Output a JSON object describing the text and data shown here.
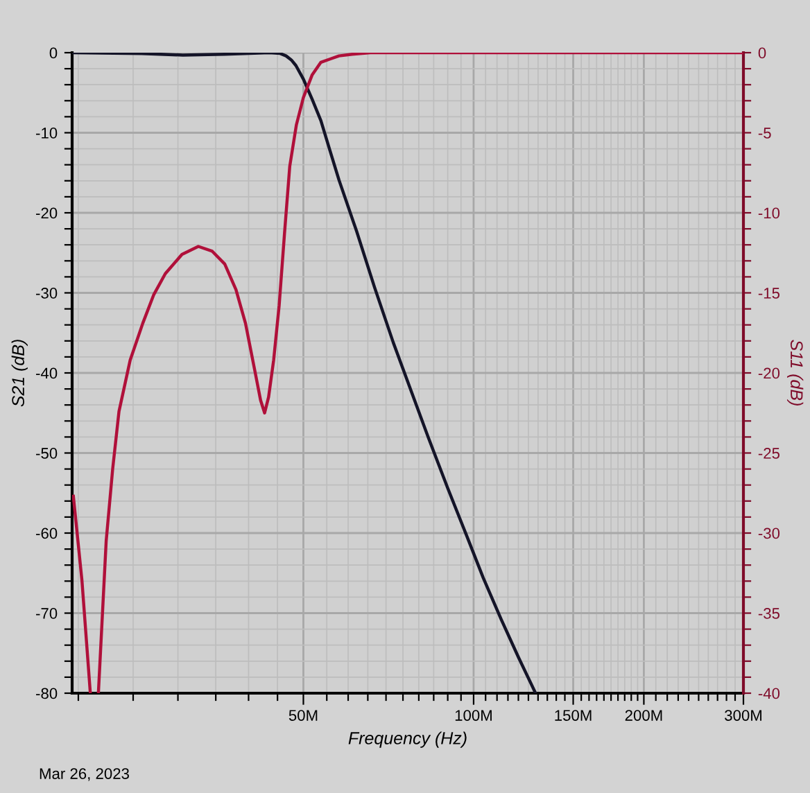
{
  "chart_data": {
    "type": "line",
    "xlabel": "Frequency (Hz)",
    "ylabel": "S21 (dB)",
    "y2label": "S11 (dB)",
    "log": "x",
    "grid": true,
    "xlim": [
      19500000,
      300000000
    ],
    "xticks": [
      {
        "value": 20000000,
        "label": null
      },
      {
        "value": 25000000,
        "label": null
      },
      {
        "value": 30000000,
        "label": null
      },
      {
        "value": 35000000,
        "label": null
      },
      {
        "value": 40000000,
        "label": null
      },
      {
        "value": 45000000,
        "label": null
      },
      {
        "value": 50000000,
        "label": "50M"
      },
      {
        "value": 55000000,
        "label": null
      },
      {
        "value": 60000000,
        "label": null
      },
      {
        "value": 65000000,
        "label": null
      },
      {
        "value": 70000000,
        "label": null
      },
      {
        "value": 75000000,
        "label": null
      },
      {
        "value": 80000000,
        "label": null
      },
      {
        "value": 85000000,
        "label": null
      },
      {
        "value": 90000000,
        "label": null
      },
      {
        "value": 95000000,
        "label": null
      },
      {
        "value": 100000000,
        "label": "100M"
      },
      {
        "value": 105000000,
        "label": null
      },
      {
        "value": 110000000,
        "label": null
      },
      {
        "value": 115000000,
        "label": null
      },
      {
        "value": 120000000,
        "label": null
      },
      {
        "value": 125000000,
        "label": null
      },
      {
        "value": 130000000,
        "label": null
      },
      {
        "value": 135000000,
        "label": null
      },
      {
        "value": 140000000,
        "label": null
      },
      {
        "value": 145000000,
        "label": null
      },
      {
        "value": 150000000,
        "label": "150M"
      },
      {
        "value": 155000000,
        "label": null
      },
      {
        "value": 160000000,
        "label": null
      },
      {
        "value": 165000000,
        "label": null
      },
      {
        "value": 170000000,
        "label": null
      },
      {
        "value": 175000000,
        "label": null
      },
      {
        "value": 180000000,
        "label": null
      },
      {
        "value": 185000000,
        "label": null
      },
      {
        "value": 190000000,
        "label": null
      },
      {
        "value": 195000000,
        "label": null
      },
      {
        "value": 200000000,
        "label": "200M"
      },
      {
        "value": 210000000,
        "label": null
      },
      {
        "value": 220000000,
        "label": null
      },
      {
        "value": 230000000,
        "label": null
      },
      {
        "value": 240000000,
        "label": null
      },
      {
        "value": 250000000,
        "label": null
      },
      {
        "value": 260000000,
        "label": null
      },
      {
        "value": 270000000,
        "label": null
      },
      {
        "value": 280000000,
        "label": null
      },
      {
        "value": 290000000,
        "label": null
      },
      {
        "value": 300000000,
        "label": "300M"
      }
    ],
    "ylim": [
      -80,
      0
    ],
    "yticks": [
      0,
      {
        "value": -2,
        "label": null
      },
      {
        "value": -4,
        "label": null
      },
      {
        "value": -6,
        "label": null
      },
      {
        "value": -8,
        "label": null
      },
      -10,
      {
        "value": -12,
        "label": null
      },
      {
        "value": -14,
        "label": null
      },
      {
        "value": -16,
        "label": null
      },
      {
        "value": -18,
        "label": null
      },
      -20,
      {
        "value": -22,
        "label": null
      },
      {
        "value": -24,
        "label": null
      },
      {
        "value": -26,
        "label": null
      },
      {
        "value": -28,
        "label": null
      },
      -30,
      {
        "value": -32,
        "label": null
      },
      {
        "value": -34,
        "label": null
      },
      {
        "value": -36,
        "label": null
      },
      {
        "value": -38,
        "label": null
      },
      -40,
      {
        "value": -42,
        "label": null
      },
      {
        "value": -44,
        "label": null
      },
      {
        "value": -46,
        "label": null
      },
      {
        "value": -48,
        "label": null
      },
      -50,
      {
        "value": -52,
        "label": null
      },
      {
        "value": -54,
        "label": null
      },
      {
        "value": -56,
        "label": null
      },
      {
        "value": -58,
        "label": null
      },
      -60,
      {
        "value": -62,
        "label": null
      },
      {
        "value": -64,
        "label": null
      },
      {
        "value": -66,
        "label": null
      },
      {
        "value": -68,
        "label": null
      },
      -70,
      {
        "value": -72,
        "label": null
      },
      {
        "value": -74,
        "label": null
      },
      {
        "value": -76,
        "label": null
      },
      {
        "value": -78,
        "label": null
      },
      -80
    ],
    "y2lim": [
      -40,
      0
    ],
    "y2ticks": [
      0,
      {
        "value": -1,
        "label": null
      },
      {
        "value": -2,
        "label": null
      },
      {
        "value": -3,
        "label": null
      },
      {
        "value": -4,
        "label": null
      },
      -5,
      {
        "value": -6,
        "label": null
      },
      {
        "value": -7,
        "label": null
      },
      {
        "value": -8,
        "label": null
      },
      {
        "value": -9,
        "label": null
      },
      -10,
      {
        "value": -11,
        "label": null
      },
      {
        "value": -12,
        "label": null
      },
      {
        "value": -13,
        "label": null
      },
      {
        "value": -14,
        "label": null
      },
      -15,
      {
        "value": -16,
        "label": null
      },
      {
        "value": -17,
        "label": null
      },
      {
        "value": -18,
        "label": null
      },
      {
        "value": -19,
        "label": null
      },
      -20,
      {
        "value": -21,
        "label": null
      },
      {
        "value": -22,
        "label": null
      },
      {
        "value": -23,
        "label": null
      },
      {
        "value": -24,
        "label": null
      },
      -25,
      {
        "value": -26,
        "label": null
      },
      {
        "value": -27,
        "label": null
      },
      {
        "value": -28,
        "label": null
      },
      {
        "value": -29,
        "label": null
      },
      -30,
      {
        "value": -31,
        "label": null
      },
      {
        "value": -32,
        "label": null
      },
      {
        "value": -33,
        "label": null
      },
      {
        "value": -34,
        "label": null
      },
      -35,
      {
        "value": -36,
        "label": null
      },
      {
        "value": -37,
        "label": null
      },
      {
        "value": -38,
        "label": null
      },
      {
        "value": -39,
        "label": null
      },
      -40
    ],
    "annotations": [
      "Mar 26, 2023"
    ],
    "series": [
      {
        "color": "#141428",
        "x": [
          19600000,
          25900000,
          30600000,
          36300000,
          43500000,
          45500000,
          46600000,
          47600000,
          48500000,
          50000000,
          51800000,
          53700000,
          55700000,
          57800000,
          62100000,
          66800000,
          72100000,
          77300000,
          83100000,
          90000000,
          97300000,
          104000000,
          111900000,
          120000000,
          128700000
        ],
        "values": [
          0,
          -0.1,
          -0.3,
          -0.2,
          0,
          -0.1,
          -0.4,
          -0.9,
          -1.6,
          -3.3,
          -5.8,
          -8.5,
          -12.2,
          -15.9,
          -22.3,
          -29.3,
          -36.2,
          -42,
          -48,
          -54.4,
          -60.4,
          -65.6,
          -70.8,
          -75.5,
          -80
        ]
      },
      {
        "color": "#b0103a",
        "axis": "y2",
        "x": [
          19600000,
          20300000,
          21000000,
          21100000,
          21700000,
          22400000,
          23000000,
          23600000,
          24700000,
          26000000,
          27200000,
          28500000,
          30500000,
          32600000,
          34500000,
          36300000,
          38000000,
          39500000,
          41000000,
          42000000,
          42700000,
          43400000,
          44300000,
          45300000,
          46300000,
          47300000,
          48600000,
          50000000,
          51800000,
          53700000,
          55700000,
          57800000,
          61000000,
          65700000,
          300000000
        ],
        "values": [
          -27.7,
          -33,
          -40,
          null,
          -40,
          -30.5,
          -26,
          -22.4,
          -19.2,
          -16.9,
          -15.1,
          -13.8,
          -12.6,
          -12.1,
          -12.4,
          -13.2,
          -14.8,
          -16.9,
          -19.8,
          -21.7,
          -22.5,
          -21.5,
          -19.2,
          -15.8,
          -11.3,
          -7.1,
          -4.5,
          -2.8,
          -1.4,
          -0.6,
          -0.4,
          -0.2,
          -0.1,
          0,
          0
        ]
      }
    ]
  }
}
